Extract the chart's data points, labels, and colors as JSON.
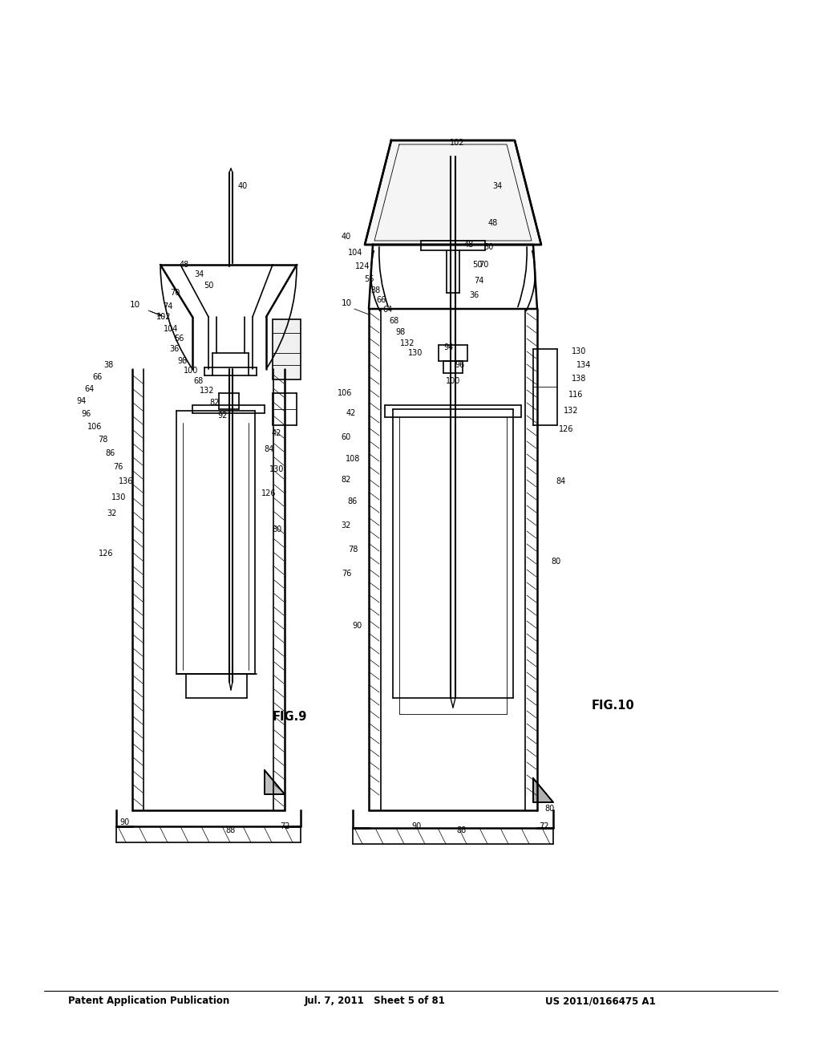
{
  "header_left": "Patent Application Publication",
  "header_mid": "Jul. 7, 2011   Sheet 5 of 81",
  "header_right": "US 2011/0166475 A1",
  "background_color": "#ffffff",
  "line_color": "#000000",
  "fig9_label": "FIG.9",
  "fig10_label": "FIG.10",
  "font_size_header": 8.5,
  "font_size_labels": 7.0,
  "font_size_fig": 10.5
}
